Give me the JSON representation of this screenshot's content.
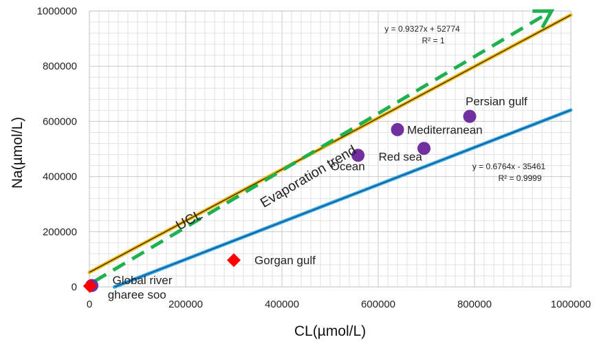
{
  "chart_data": {
    "type": "scatter",
    "title": "",
    "xlabel": "CL(µmol/L)",
    "ylabel": "Na(µmol/L)",
    "xlim": [
      0,
      1000000
    ],
    "ylim": [
      0,
      1000000
    ],
    "x_ticks": [
      0,
      200000,
      400000,
      600000,
      800000,
      1000000
    ],
    "y_ticks": [
      0,
      200000,
      400000,
      600000,
      800000,
      1000000
    ],
    "x_tick_labels": [
      "0",
      "200000",
      "400000",
      "600000",
      "800000",
      "1000000"
    ],
    "y_tick_labels": [
      "0",
      "200000",
      "400000",
      "600000",
      "800000",
      "1000000"
    ],
    "grid": true,
    "points": [
      {
        "label": "Global river",
        "x": 5000,
        "y": 5000,
        "marker": "circle",
        "color": "#7030a0"
      },
      {
        "label": "gharee soo",
        "x": 1000,
        "y": 3000,
        "marker": "diamond",
        "color": "#ff0000"
      },
      {
        "label": "Gorgan gulf",
        "x": 300000,
        "y": 97000,
        "marker": "diamond",
        "color": "#ff0000"
      },
      {
        "label": "Ocean",
        "x": 558000,
        "y": 477000,
        "marker": "circle",
        "color": "#7030a0"
      },
      {
        "label": "Mediterranean",
        "x": 640000,
        "y": 570000,
        "marker": "circle",
        "color": "#7030a0"
      },
      {
        "label": "Red sea",
        "x": 695000,
        "y": 502000,
        "marker": "circle",
        "color": "#7030a0"
      },
      {
        "label": "Persian gulf",
        "x": 790000,
        "y": 618000,
        "marker": "circle",
        "color": "#7030a0"
      }
    ],
    "lines": [
      {
        "name": "UCL",
        "slope": 0.9327,
        "intercept": 52774,
        "x_range": [
          0,
          1000000
        ],
        "color": "#f0b400",
        "inner_color": "#222222",
        "equation": "y = 0.9327x + 52774",
        "r2": "R² = 1"
      },
      {
        "name": "",
        "slope": 0.6764,
        "intercept": -35461,
        "x_range": [
          52000,
          1000000
        ],
        "color": "#2ea8dc",
        "inner_color": "#1a3a8a",
        "equation": "y = 0.6764x - 35461",
        "r2": "R² = 0.9999"
      }
    ],
    "trend_arrow": {
      "label": "Evaporation trend",
      "from": [
        10000,
        20000
      ],
      "to": [
        960000,
        1000000
      ],
      "color": "#1fb050"
    }
  }
}
